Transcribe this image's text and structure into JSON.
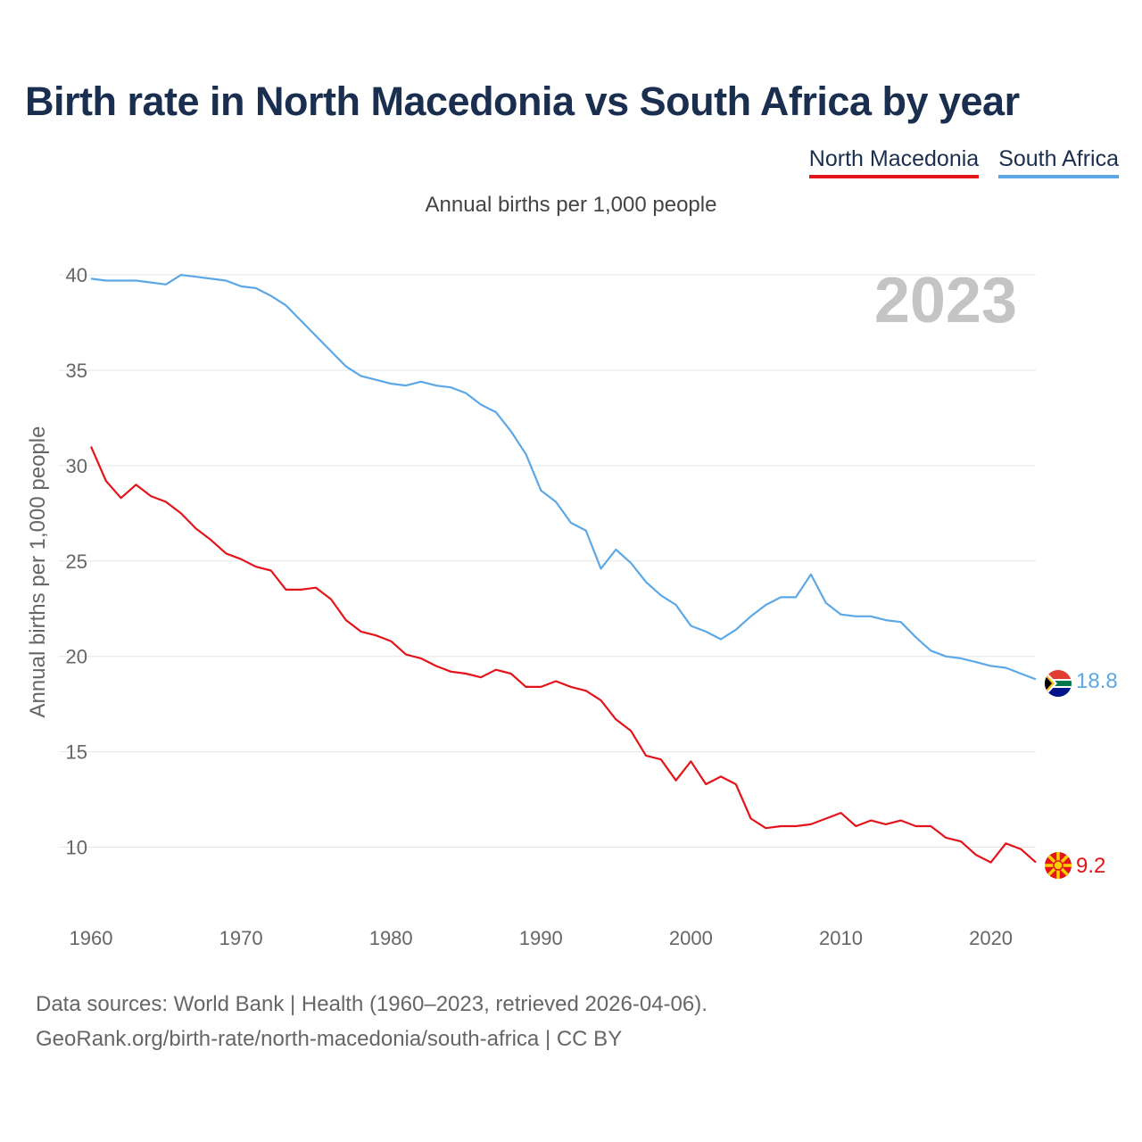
{
  "title": "Birth rate in North Macedonia vs South Africa by year",
  "subtitle": "Annual births per 1,000 people",
  "legend": [
    {
      "label": "North Macedonia",
      "color": "#e4141b"
    },
    {
      "label": "South Africa",
      "color": "#5ca8e6"
    }
  ],
  "footer": {
    "line1": "Data sources: World Bank | Health (1960–2023, retrieved 2026-04-06).",
    "line2": "GeoRank.org/birth-rate/north-macedonia/south-africa | CC BY"
  },
  "chart_data": {
    "type": "line",
    "title": "Birth rate in North Macedonia vs South Africa by year",
    "subtitle": "Annual births per 1,000 people",
    "xlabel": "",
    "ylabel": "Annual births per 1,000 people",
    "year_label": "2023",
    "xlim": [
      1960,
      2023
    ],
    "ylim": [
      7.5,
      41.5
    ],
    "x_ticks": [
      1960,
      1970,
      1980,
      1990,
      2000,
      2010,
      2020
    ],
    "y_ticks": [
      10,
      15,
      20,
      25,
      30,
      35,
      40
    ],
    "grid": true,
    "x": [
      1960,
      1961,
      1962,
      1963,
      1964,
      1965,
      1966,
      1967,
      1968,
      1969,
      1970,
      1971,
      1972,
      1973,
      1974,
      1975,
      1976,
      1977,
      1978,
      1979,
      1980,
      1981,
      1982,
      1983,
      1984,
      1985,
      1986,
      1987,
      1988,
      1989,
      1990,
      1991,
      1992,
      1993,
      1994,
      1995,
      1996,
      1997,
      1998,
      1999,
      2000,
      2001,
      2002,
      2003,
      2004,
      2005,
      2006,
      2007,
      2008,
      2009,
      2010,
      2011,
      2012,
      2013,
      2014,
      2015,
      2016,
      2017,
      2018,
      2019,
      2020,
      2021,
      2022,
      2023
    ],
    "series": [
      {
        "name": "North Macedonia",
        "color": "#e4141b",
        "end_label": "9.2",
        "flag": "north-macedonia",
        "values": [
          31.0,
          29.2,
          28.3,
          29.0,
          28.4,
          28.1,
          27.5,
          26.7,
          26.1,
          25.4,
          25.1,
          24.7,
          24.5,
          23.5,
          23.5,
          23.6,
          23.0,
          21.9,
          21.3,
          21.1,
          20.8,
          20.1,
          19.9,
          19.5,
          19.2,
          19.1,
          18.9,
          19.3,
          19.1,
          18.4,
          18.4,
          18.7,
          18.4,
          18.2,
          17.7,
          16.7,
          16.1,
          14.8,
          14.6,
          13.5,
          14.5,
          13.3,
          13.7,
          13.3,
          11.5,
          11.0,
          11.1,
          11.1,
          11.2,
          11.5,
          11.8,
          11.1,
          11.4,
          11.2,
          11.4,
          11.1,
          11.1,
          10.5,
          10.3,
          9.6,
          9.2,
          10.2,
          9.9,
          9.2
        ]
      },
      {
        "name": "South Africa",
        "color": "#5ca8e6",
        "end_label": "18.8",
        "flag": "south-africa",
        "values": [
          39.8,
          39.7,
          39.7,
          39.7,
          39.6,
          39.5,
          40.0,
          39.9,
          39.8,
          39.7,
          39.4,
          39.3,
          38.9,
          38.4,
          37.6,
          36.8,
          36.0,
          35.2,
          34.7,
          34.5,
          34.3,
          34.2,
          34.4,
          34.2,
          34.1,
          33.8,
          33.2,
          32.8,
          31.8,
          30.6,
          28.7,
          28.1,
          27.0,
          26.6,
          24.6,
          25.6,
          24.9,
          23.9,
          23.2,
          22.7,
          21.6,
          21.3,
          20.9,
          21.4,
          22.1,
          22.7,
          23.1,
          23.1,
          24.3,
          22.8,
          22.2,
          22.1,
          22.1,
          21.9,
          21.8,
          21.0,
          20.3,
          20.0,
          19.9,
          19.7,
          19.5,
          19.4,
          19.1,
          18.8
        ]
      }
    ]
  }
}
